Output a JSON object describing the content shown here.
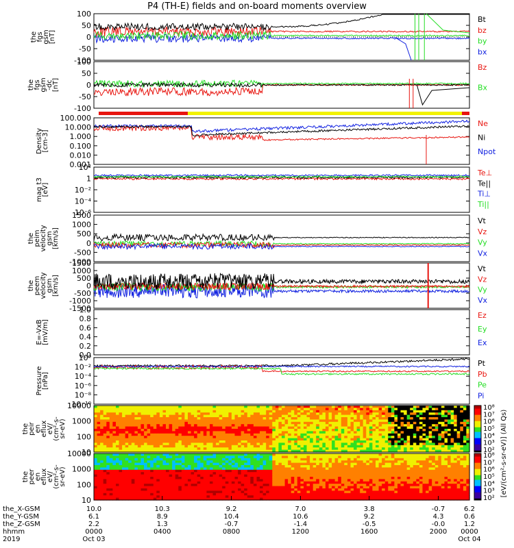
{
  "title": "P4 (TH-E) fields and on-board moments overview",
  "colors": {
    "black": "#000000",
    "red": "#e8150f",
    "green": "#22dd22",
    "blue": "#1020e0",
    "yellow": "#f2f200"
  },
  "chart_data": [
    {
      "id": "fgs_gsm",
      "type": "line",
      "ylabel": [
        "the",
        "fgs",
        "gsm",
        "[nT]"
      ],
      "yticks": [
        "100",
        "50",
        "0",
        "-50",
        "-100"
      ],
      "series": [
        {
          "name": "Bt",
          "color": "black"
        },
        {
          "name": "bz",
          "color": "red"
        },
        {
          "name": "by",
          "color": "green"
        },
        {
          "name": "bx",
          "color": "blue"
        }
      ]
    },
    {
      "id": "fgs_gsm_dc",
      "type": "line",
      "ylabel": [
        "the",
        "fgs",
        "gsm",
        "-dc",
        "[nT]"
      ],
      "yticks": [
        "100",
        "50",
        "0",
        "-50",
        "-100"
      ],
      "series": [
        {
          "name": "Bz",
          "color": "red"
        },
        {
          "name": "Bx",
          "color": "green"
        }
      ]
    },
    {
      "id": "density",
      "type": "line",
      "ylabel": [
        "Density",
        "[cm-3]"
      ],
      "yticks": [
        "100.000",
        "10.000",
        "1.000",
        "0.100",
        "0.010",
        "0.001"
      ],
      "series": [
        {
          "name": "Ne",
          "color": "red"
        },
        {
          "name": "Ni",
          "color": "black"
        },
        {
          "name": "Npot",
          "color": "blue"
        }
      ]
    },
    {
      "id": "temperature",
      "type": "line",
      "ylabel": [
        "mag t3",
        "[eV]"
      ],
      "yticks": [
        "10²",
        "1",
        "10⁻²",
        "10⁻⁴",
        "10⁻⁶"
      ],
      "series": [
        {
          "name": "Te⊥",
          "color": "red"
        },
        {
          "name": "Te||",
          "color": "black"
        },
        {
          "name": "Ti⊥",
          "color": "blue"
        },
        {
          "name": "Ti||",
          "color": "green"
        }
      ]
    },
    {
      "id": "peim_velocity",
      "type": "line",
      "ylabel": [
        "the",
        "peim",
        "velocity",
        "gsm",
        "[km/s]"
      ],
      "yticks": [
        "1500",
        "1000",
        "500",
        "0",
        "-500",
        "-1000"
      ],
      "series": [
        {
          "name": "Vt",
          "color": "black"
        },
        {
          "name": "Vz",
          "color": "red"
        },
        {
          "name": "Vy",
          "color": "green"
        },
        {
          "name": "Vx",
          "color": "blue"
        }
      ]
    },
    {
      "id": "peem_velocity",
      "type": "line",
      "ylabel": [
        "the",
        "peem",
        "velocity",
        "gsm",
        "[km/s]"
      ],
      "yticks": [
        "1500",
        "1000",
        "500",
        "0",
        "-500",
        "-1000",
        "-1500"
      ],
      "series": [
        {
          "name": "Vt",
          "color": "black"
        },
        {
          "name": "Vz",
          "color": "red"
        },
        {
          "name": "Vy",
          "color": "green"
        },
        {
          "name": "Vx",
          "color": "blue"
        }
      ]
    },
    {
      "id": "efield",
      "type": "line",
      "ylabel": [
        "E=-VxB",
        "[mV/m]"
      ],
      "yticks": [
        "1.0",
        "0.8",
        "0.6",
        "0.4",
        "0.2",
        "0.0"
      ],
      "series": [
        {
          "name": "Ez",
          "color": "red"
        },
        {
          "name": "Ey",
          "color": "green"
        },
        {
          "name": "Ex",
          "color": "blue"
        }
      ]
    },
    {
      "id": "pressure",
      "type": "line",
      "ylabel": [
        "Pressure",
        "[nPa]"
      ],
      "yticks": [
        "10⁰",
        "10⁻²",
        "10⁻⁴",
        "10⁻⁶",
        "10⁻⁸",
        "10⁻¹⁰"
      ],
      "series": [
        {
          "name": "Pt",
          "color": "black"
        },
        {
          "name": "Pb",
          "color": "red"
        },
        {
          "name": "Pe",
          "color": "green"
        },
        {
          "name": "Pi",
          "color": "blue"
        }
      ]
    },
    {
      "id": "peir_spectrogram",
      "type": "heatmap",
      "ylabel": [
        "the",
        "peir",
        "en",
        "eflux",
        "eV/",
        "(cm²-s-",
        "sr-eV)"
      ],
      "yticks": [
        "10000",
        "1000",
        "100",
        "10"
      ]
    },
    {
      "id": "peer_spectrogram",
      "type": "heatmap",
      "ylabel": [
        "the",
        "peer",
        "en",
        "eflux",
        "eV/",
        "(cm²-s-",
        "sr-eV)"
      ],
      "yticks": [
        "10000",
        "1000",
        "100",
        "10"
      ]
    }
  ],
  "colorbar": {
    "ticks": [
      "10⁸",
      "10⁷",
      "10⁶",
      "10⁵",
      "10⁴",
      "10³",
      "10²"
    ],
    "ticks2": [
      "10⁸",
      "10⁷",
      "10⁶",
      "10⁵",
      "10⁴",
      "10³",
      "10²"
    ],
    "label": "[eV/(cm²-s-sr-eV)] (All Qs)"
  },
  "xaxis": {
    "row_labels": [
      "the_X-GSM",
      "the_Y-GSM",
      "the_Z-GSM",
      "hhmm",
      "2019"
    ],
    "rows": [
      [
        "10.0",
        "10.3",
        "9.2",
        "7.0",
        "3.8",
        "-0.7",
        "6.2"
      ],
      [
        "6.1",
        "8.9",
        "10.4",
        "10.6",
        "9.2",
        "4.3",
        "0.6"
      ],
      [
        "2.2",
        "1.3",
        "-0.7",
        "-1.4",
        "-0.5",
        "-0.0",
        "1.2"
      ],
      [
        "0000",
        "0400",
        "0800",
        "1200",
        "1600",
        "2000",
        "0000"
      ],
      [
        "Oct 03",
        "",
        "",
        "",
        "",
        "",
        "Oct 04"
      ]
    ]
  }
}
